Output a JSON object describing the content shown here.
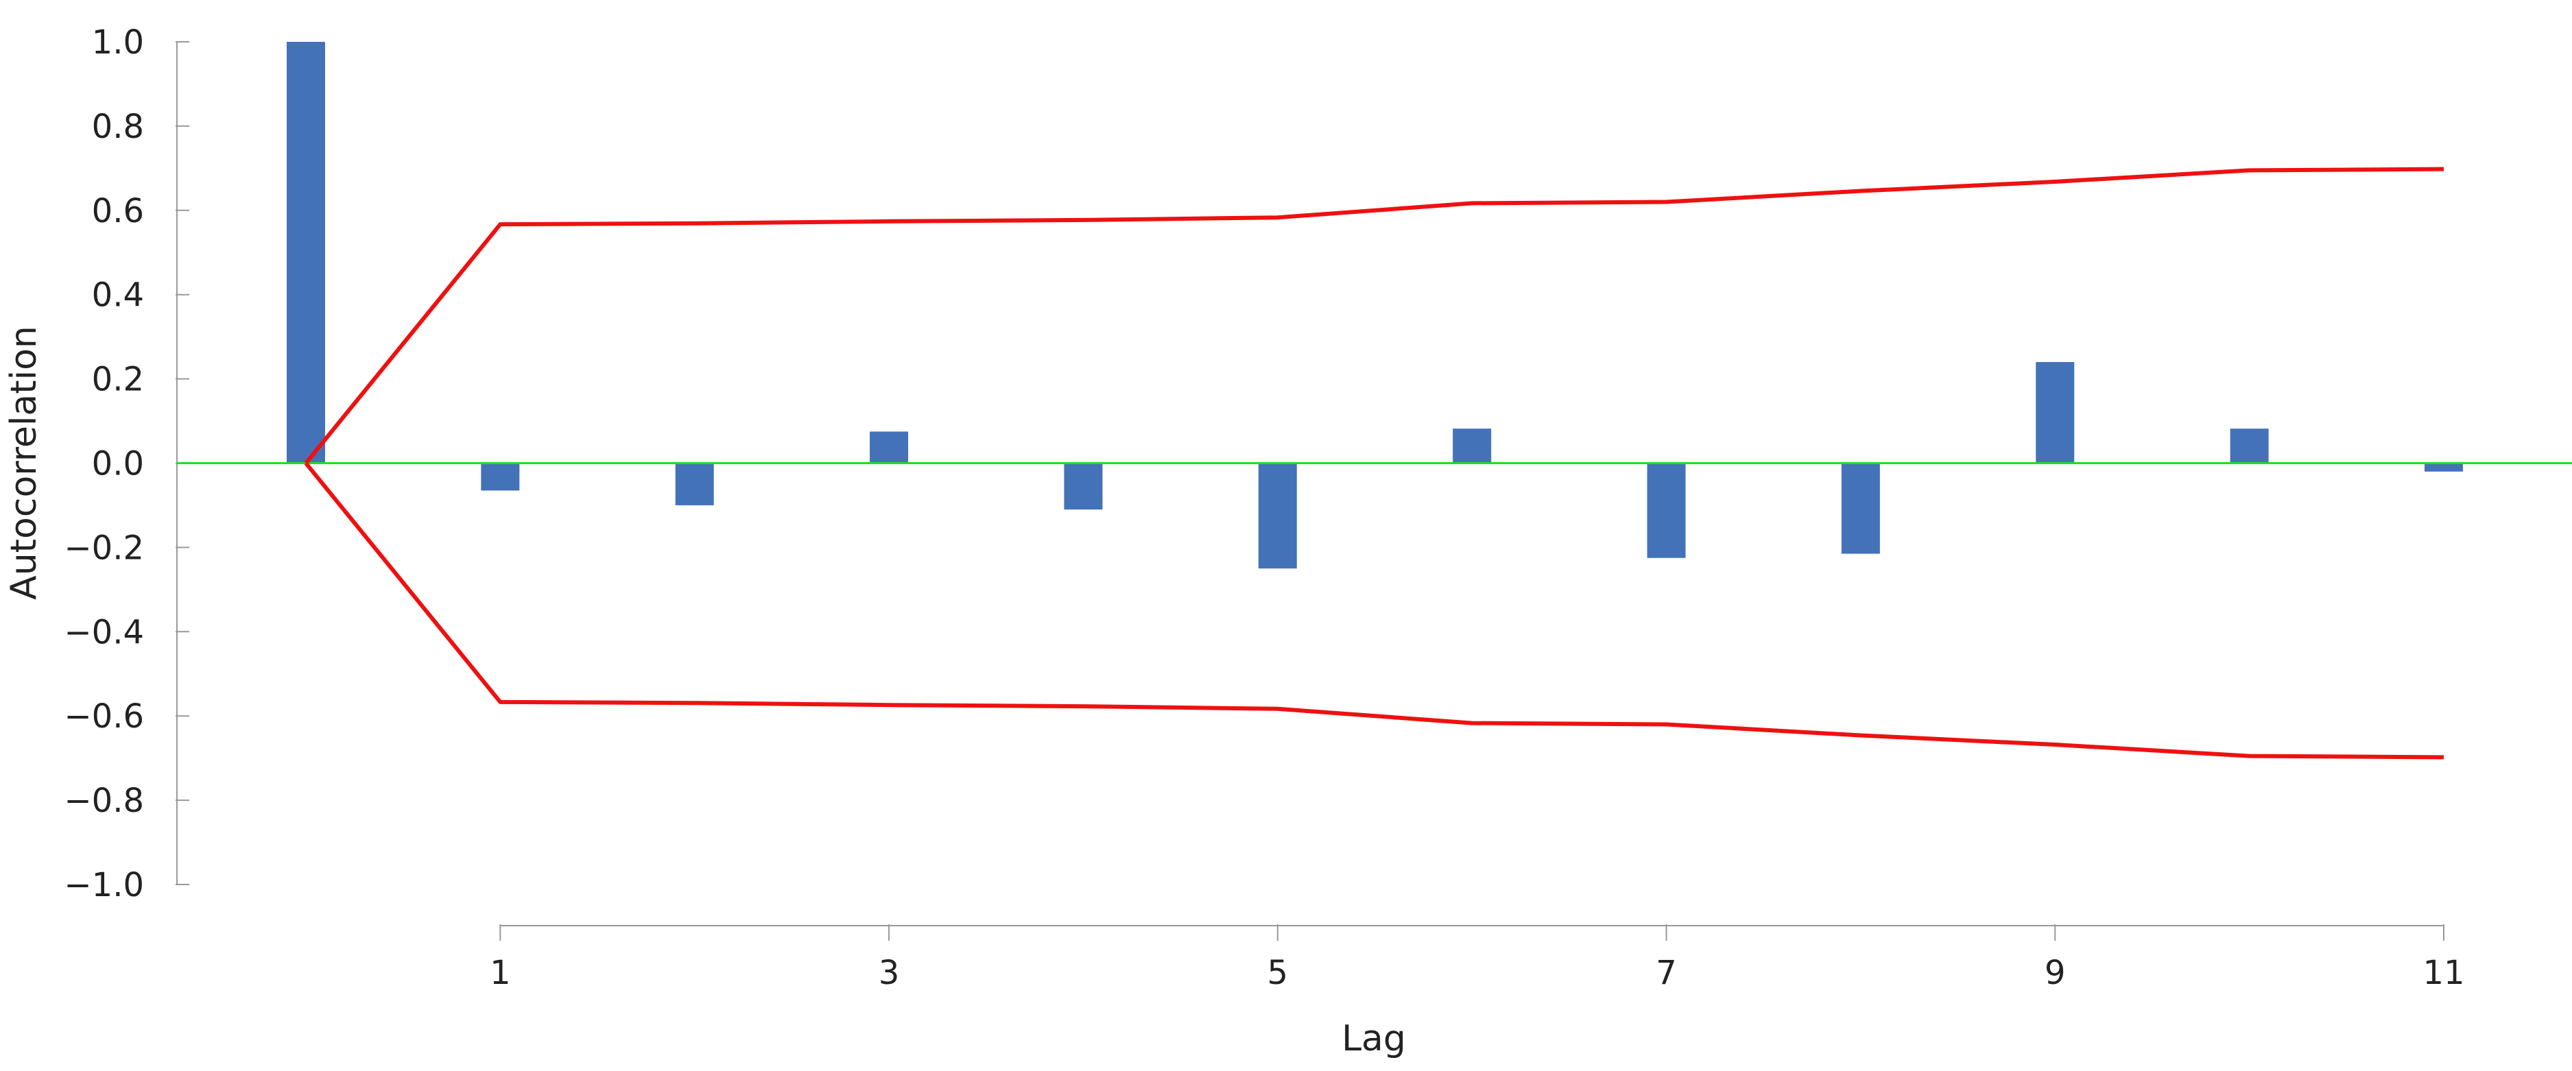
{
  "chart_data": {
    "type": "bar",
    "title": "",
    "xlabel": "Lag",
    "ylabel": "Autocorrelation",
    "ylim": [
      -1.0,
      1.0
    ],
    "xlim": [
      -0.5,
      11.5
    ],
    "yticks": [
      1.0,
      0.8,
      0.6,
      0.4,
      0.2,
      0.0,
      -0.2,
      -0.4,
      -0.6,
      -0.8,
      -1.0
    ],
    "ytick_labels": [
      "1.0",
      "0.8",
      "0.6",
      "0.4",
      "0.2",
      "0.0",
      "−0.2",
      "−0.4",
      "−0.6",
      "−0.8",
      "−1.0"
    ],
    "xticks": [
      1,
      3,
      5,
      7,
      9,
      11
    ],
    "xtick_labels": [
      "1",
      "3",
      "5",
      "7",
      "9",
      "11"
    ],
    "grid": false,
    "series": [
      {
        "kind": "bar",
        "color": "#4472b8",
        "x": [
          0,
          1,
          2,
          3,
          4,
          5,
          6,
          7,
          8,
          9,
          10,
          11
        ],
        "values": [
          1.0,
          -0.065,
          -0.1,
          0.075,
          -0.11,
          -0.25,
          0.082,
          -0.225,
          -0.215,
          0.24,
          0.082,
          -0.02
        ]
      },
      {
        "kind": "line",
        "color": "#ee1111",
        "x": [
          0,
          1,
          2,
          3,
          4,
          5,
          6,
          7,
          8,
          9,
          10,
          11
        ],
        "values": [
          0.0,
          0.567,
          0.569,
          0.574,
          0.577,
          0.583,
          0.617,
          0.62,
          0.646,
          0.668,
          0.695,
          0.698
        ]
      },
      {
        "kind": "line",
        "color": "#ee1111",
        "x": [
          0,
          1,
          2,
          3,
          4,
          5,
          6,
          7,
          8,
          9,
          10,
          11
        ],
        "values": [
          0.0,
          -0.567,
          -0.569,
          -0.574,
          -0.577,
          -0.583,
          -0.617,
          -0.62,
          -0.646,
          -0.668,
          -0.695,
          -0.698
        ]
      }
    ],
    "zero_line_color": "#22dd22",
    "axis_color": "#999999"
  }
}
